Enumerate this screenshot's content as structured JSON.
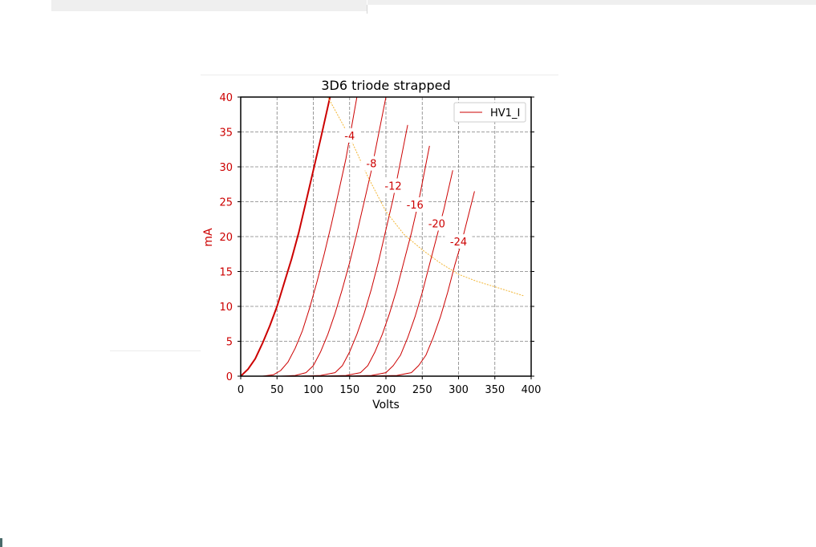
{
  "colors": {
    "curve": "#cc0000",
    "tick_label": "#cc0000",
    "load_line": "#f2b533",
    "grid": "#808080",
    "axis": "#000000",
    "background_fragment": "#efefef"
  },
  "chart_data": {
    "type": "line",
    "title": "3D6 triode strapped",
    "xlabel": "Volts",
    "ylabel": "mA",
    "xlim": [
      0,
      400
    ],
    "ylim": [
      0,
      40
    ],
    "xticks": [
      "0",
      "50",
      "100",
      "150",
      "200",
      "250",
      "300",
      "350",
      "400"
    ],
    "yticks": [
      "0",
      "5",
      "10",
      "15",
      "20",
      "25",
      "30",
      "35",
      "40"
    ],
    "grid": true,
    "legend": {
      "placement": "top-right",
      "entries": [
        "HV1_I"
      ]
    },
    "series": [
      {
        "grid_voltage": "0",
        "x": [
          0,
          10,
          20,
          30,
          40,
          50,
          60,
          70,
          80,
          90,
          100,
          110,
          123
        ],
        "y": [
          0,
          1.0,
          2.5,
          4.7,
          7.2,
          10.0,
          13.4,
          16.8,
          20.6,
          25.0,
          29.5,
          34.0,
          40.0
        ]
      },
      {
        "name": "-4",
        "x": [
          30,
          45,
          55,
          65,
          75,
          85,
          95,
          105,
          115,
          125,
          135,
          145,
          160
        ],
        "y": [
          0,
          0.2,
          0.8,
          2.0,
          4.0,
          6.5,
          9.8,
          13.5,
          17.5,
          21.8,
          26.5,
          31.2,
          40.0
        ]
      },
      {
        "name": "-8",
        "x": [
          55,
          75,
          90,
          100,
          110,
          120,
          130,
          140,
          150,
          160,
          170,
          180,
          200
        ],
        "y": [
          0,
          0.1,
          0.5,
          1.5,
          3.5,
          6.0,
          9.0,
          12.5,
          16.3,
          20.5,
          25.0,
          29.5,
          40.0
        ]
      },
      {
        "name": "-12",
        "x": [
          80,
          110,
          130,
          140,
          150,
          160,
          170,
          180,
          190,
          200,
          210,
          230
        ],
        "y": [
          0,
          0.1,
          0.5,
          1.5,
          3.5,
          6.0,
          9.0,
          12.5,
          16.5,
          21.0,
          25.5,
          36.0
        ]
      },
      {
        "name": "-16",
        "x": [
          110,
          145,
          165,
          175,
          185,
          195,
          205,
          215,
          225,
          235,
          245,
          260
        ],
        "y": [
          0,
          0.1,
          0.5,
          1.5,
          3.5,
          6.0,
          9.0,
          12.5,
          16.5,
          20.5,
          25.0,
          33.0
        ]
      },
      {
        "name": "-20",
        "x": [
          140,
          180,
          200,
          210,
          220,
          230,
          240,
          250,
          260,
          270,
          280,
          292
        ],
        "y": [
          0,
          0.1,
          0.5,
          1.5,
          3.0,
          5.5,
          8.5,
          12.0,
          16.0,
          20.0,
          24.0,
          29.5
        ]
      },
      {
        "name": "-24",
        "x": [
          170,
          215,
          235,
          245,
          255,
          265,
          275,
          285,
          295,
          305,
          322
        ],
        "y": [
          0,
          0.1,
          0.5,
          1.5,
          3.0,
          5.5,
          8.5,
          12.0,
          16.0,
          19.5,
          26.5
        ]
      },
      {
        "name": "HV1_I",
        "x": [
          120,
          150,
          175,
          200,
          225,
          250,
          275,
          300,
          325,
          350,
          390
        ],
        "y": [
          40,
          34.3,
          28.6,
          23.6,
          20.3,
          18.1,
          16.2,
          14.6,
          13.6,
          12.8,
          11.5
        ]
      }
    ],
    "annotations": [
      {
        "text": "-4",
        "x": 150,
        "y": 34.5
      },
      {
        "text": "-8",
        "x": 180,
        "y": 30.5
      },
      {
        "text": "-12",
        "x": 210,
        "y": 27.3
      },
      {
        "text": "-16",
        "x": 240,
        "y": 24.6
      },
      {
        "text": "-20",
        "x": 270,
        "y": 21.9
      },
      {
        "text": "-24",
        "x": 300,
        "y": 19.3
      }
    ]
  }
}
